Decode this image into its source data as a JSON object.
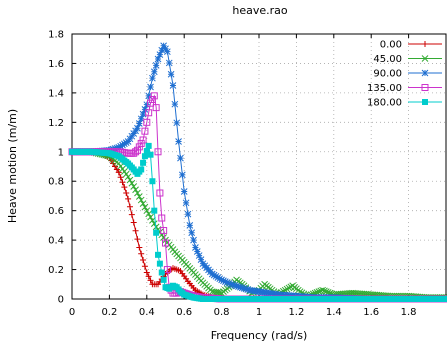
{
  "chart_data": {
    "type": "line",
    "title": "heave.rao",
    "xlabel": "Frequency (rad/s)",
    "ylabel": "Heave motion  (m/m)",
    "xlim": [
      0,
      2
    ],
    "ylim": [
      0,
      1.8
    ],
    "xticks": [
      "0",
      "0.2",
      "0.4",
      "0.6",
      "0.8",
      "1",
      "1.2",
      "1.4",
      "1.6",
      "1.8"
    ],
    "yticks": [
      "0",
      "0.2",
      "0.4",
      "0.6",
      "0.8",
      "1",
      "1.2",
      "1.4",
      "1.6",
      "1.8"
    ],
    "grid": true,
    "legend_position": "top-right",
    "series": [
      {
        "name": "0.00",
        "color": "#cc0000",
        "marker": "plus",
        "points": [
          [
            0,
            1
          ],
          [
            0.1,
            1
          ],
          [
            0.15,
            0.99
          ],
          [
            0.2,
            0.96
          ],
          [
            0.25,
            0.86
          ],
          [
            0.28,
            0.76
          ],
          [
            0.3,
            0.68
          ],
          [
            0.33,
            0.52
          ],
          [
            0.36,
            0.35
          ],
          [
            0.4,
            0.18
          ],
          [
            0.43,
            0.1
          ],
          [
            0.46,
            0.1
          ],
          [
            0.5,
            0.17
          ],
          [
            0.54,
            0.21
          ],
          [
            0.58,
            0.19
          ],
          [
            0.62,
            0.12
          ],
          [
            0.66,
            0.06
          ],
          [
            0.7,
            0.03
          ],
          [
            0.75,
            0.01
          ],
          [
            0.8,
            0
          ],
          [
            0.9,
            0
          ],
          [
            1.0,
            0
          ],
          [
            2.0,
            0
          ]
        ]
      },
      {
        "name": "45.00",
        "color": "#33aa33",
        "marker": "cross",
        "points": [
          [
            0,
            1
          ],
          [
            0.1,
            1
          ],
          [
            0.2,
            0.97
          ],
          [
            0.25,
            0.92
          ],
          [
            0.3,
            0.83
          ],
          [
            0.35,
            0.72
          ],
          [
            0.4,
            0.6
          ],
          [
            0.45,
            0.49
          ],
          [
            0.5,
            0.4
          ],
          [
            0.55,
            0.32
          ],
          [
            0.6,
            0.25
          ],
          [
            0.65,
            0.18
          ],
          [
            0.7,
            0.11
          ],
          [
            0.75,
            0.05
          ],
          [
            0.8,
            0.04
          ],
          [
            0.85,
            0.09
          ],
          [
            0.88,
            0.13
          ],
          [
            0.92,
            0.09
          ],
          [
            0.96,
            0.04
          ],
          [
            1.0,
            0.06
          ],
          [
            1.03,
            0.1
          ],
          [
            1.07,
            0.06
          ],
          [
            1.1,
            0.03
          ],
          [
            1.14,
            0.06
          ],
          [
            1.18,
            0.09
          ],
          [
            1.22,
            0.05
          ],
          [
            1.26,
            0.02
          ],
          [
            1.3,
            0.04
          ],
          [
            1.34,
            0.06
          ],
          [
            1.4,
            0.03
          ],
          [
            1.5,
            0.04
          ],
          [
            1.6,
            0.03
          ],
          [
            1.7,
            0.02
          ],
          [
            1.8,
            0.02
          ],
          [
            1.9,
            0.01
          ],
          [
            2.0,
            0.01
          ]
        ]
      },
      {
        "name": "90.00",
        "color": "#1f6fd1",
        "marker": "star",
        "points": [
          [
            0,
            1
          ],
          [
            0.1,
            1
          ],
          [
            0.2,
            1.01
          ],
          [
            0.25,
            1.03
          ],
          [
            0.3,
            1.07
          ],
          [
            0.35,
            1.16
          ],
          [
            0.4,
            1.32
          ],
          [
            0.43,
            1.5
          ],
          [
            0.46,
            1.63
          ],
          [
            0.49,
            1.72
          ],
          [
            0.51,
            1.68
          ],
          [
            0.54,
            1.45
          ],
          [
            0.57,
            1.07
          ],
          [
            0.6,
            0.73
          ],
          [
            0.63,
            0.5
          ],
          [
            0.66,
            0.35
          ],
          [
            0.7,
            0.24
          ],
          [
            0.75,
            0.17
          ],
          [
            0.8,
            0.13
          ],
          [
            0.85,
            0.1
          ],
          [
            0.9,
            0.08
          ],
          [
            0.95,
            0.06
          ],
          [
            1.0,
            0.05
          ],
          [
            1.1,
            0.03
          ],
          [
            1.2,
            0.02
          ],
          [
            1.3,
            0.01
          ],
          [
            1.4,
            0.01
          ],
          [
            1.6,
            0
          ],
          [
            2.0,
            0
          ]
        ]
      },
      {
        "name": "135.00",
        "color": "#cc33cc",
        "marker": "box",
        "points": [
          [
            0,
            1
          ],
          [
            0.1,
            1
          ],
          [
            0.2,
            1
          ],
          [
            0.25,
            1
          ],
          [
            0.3,
            0.99
          ],
          [
            0.33,
            0.99
          ],
          [
            0.35,
            1.01
          ],
          [
            0.38,
            1.08
          ],
          [
            0.4,
            1.2
          ],
          [
            0.42,
            1.33
          ],
          [
            0.44,
            1.38
          ],
          [
            0.45,
            1.3
          ],
          [
            0.46,
            1.0
          ],
          [
            0.47,
            0.72
          ],
          [
            0.48,
            0.55
          ],
          [
            0.5,
            0.38
          ],
          [
            0.51,
            0.2
          ],
          [
            0.52,
            0.08
          ],
          [
            0.54,
            0.04
          ],
          [
            0.56,
            0.04
          ],
          [
            0.58,
            0.05
          ],
          [
            0.6,
            0.04
          ],
          [
            0.65,
            0.02
          ],
          [
            0.7,
            0.01
          ],
          [
            0.8,
            0
          ],
          [
            1.0,
            0
          ],
          [
            2.0,
            0
          ]
        ]
      },
      {
        "name": "180.00",
        "color": "#00cccc",
        "marker": "filledbox",
        "points": [
          [
            0,
            1
          ],
          [
            0.1,
            1
          ],
          [
            0.2,
            0.99
          ],
          [
            0.25,
            0.97
          ],
          [
            0.3,
            0.92
          ],
          [
            0.33,
            0.88
          ],
          [
            0.35,
            0.85
          ],
          [
            0.37,
            0.88
          ],
          [
            0.39,
            0.97
          ],
          [
            0.41,
            1.04
          ],
          [
            0.42,
            0.98
          ],
          [
            0.43,
            0.8
          ],
          [
            0.44,
            0.6
          ],
          [
            0.45,
            0.45
          ],
          [
            0.46,
            0.3
          ],
          [
            0.48,
            0.18
          ],
          [
            0.5,
            0.08
          ],
          [
            0.52,
            0.07
          ],
          [
            0.54,
            0.09
          ],
          [
            0.56,
            0.08
          ],
          [
            0.58,
            0.05
          ],
          [
            0.6,
            0.03
          ],
          [
            0.65,
            0.01
          ],
          [
            0.7,
            0
          ],
          [
            1.0,
            0
          ],
          [
            2.0,
            0
          ]
        ]
      }
    ]
  }
}
